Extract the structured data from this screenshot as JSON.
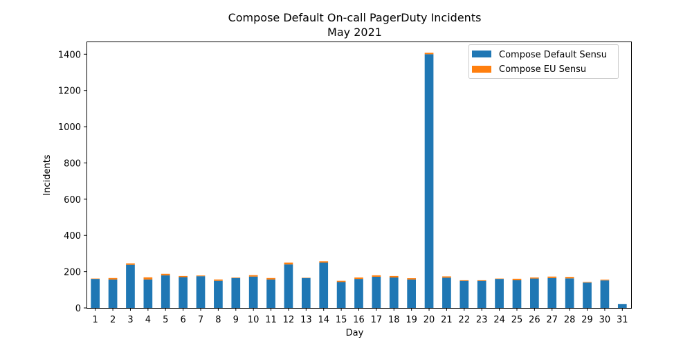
{
  "chart_data": {
    "type": "bar",
    "stacked": true,
    "title": "Compose Default On-call PagerDuty Incidents",
    "subtitle": "May 2021",
    "xlabel": "Day",
    "ylabel": "Incidents",
    "ylim": [
      0,
      1470
    ],
    "yticks": [
      0,
      200,
      400,
      600,
      800,
      1000,
      1200,
      1400
    ],
    "categories": [
      "1",
      "2",
      "3",
      "4",
      "5",
      "6",
      "7",
      "8",
      "9",
      "10",
      "11",
      "12",
      "13",
      "14",
      "15",
      "16",
      "17",
      "18",
      "19",
      "20",
      "21",
      "22",
      "23",
      "24",
      "25",
      "26",
      "27",
      "28",
      "29",
      "30",
      "31"
    ],
    "series": [
      {
        "name": "Compose Default Sensu",
        "color": "#1f77b4",
        "values": [
          160,
          157,
          238,
          157,
          180,
          170,
          175,
          150,
          165,
          173,
          157,
          240,
          165,
          250,
          143,
          160,
          172,
          168,
          157,
          1400,
          167,
          150,
          150,
          160,
          153,
          162,
          165,
          163,
          140,
          152,
          22
        ]
      },
      {
        "name": "Compose EU Sensu",
        "color": "#ff7f0e",
        "values": [
          2,
          8,
          8,
          12,
          8,
          6,
          4,
          7,
          3,
          8,
          8,
          10,
          2,
          8,
          7,
          8,
          8,
          8,
          7,
          8,
          7,
          3,
          3,
          2,
          8,
          6,
          8,
          8,
          3,
          4,
          0
        ]
      }
    ],
    "legend_position": "top-right",
    "grid": false
  }
}
